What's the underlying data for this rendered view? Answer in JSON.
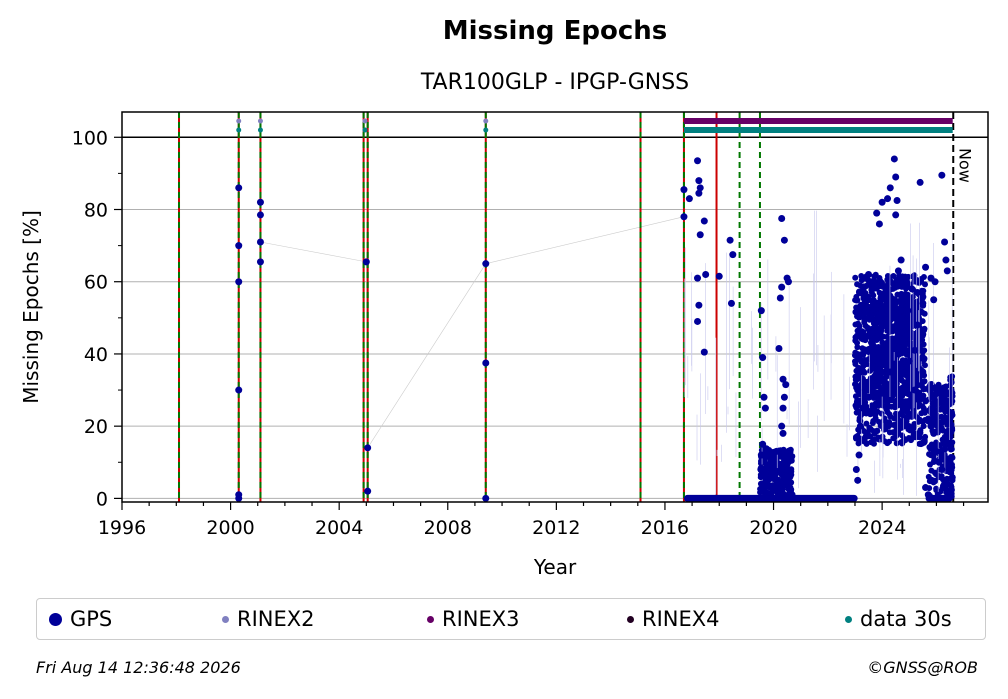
{
  "chart_data": {
    "type": "scatter",
    "title": "Missing Epochs",
    "subtitle": "TAR100GLP - IPGP-GNSS",
    "xlabel": "Year",
    "ylabel": "Missing Epochs [%]",
    "xlim": [
      1996,
      2027.9
    ],
    "ylim": [
      -1,
      107
    ],
    "xticks": [
      1996,
      2000,
      2004,
      2008,
      2012,
      2016,
      2020,
      2024
    ],
    "yticks": [
      0,
      20,
      40,
      60,
      80,
      100
    ],
    "grid": "horizontal",
    "now_label": "Now",
    "now_x": 2026.62,
    "reference_line_y": 100,
    "colors": {
      "gps": "#000099",
      "rinex2": "#8080c0",
      "rinex3": "#660066",
      "rinex4": "#220022",
      "data30s": "#008080",
      "red_line": "#cc0000",
      "green_line": "#007700",
      "grid": "#b0b0b0"
    },
    "event_lines_red": [
      1998.1,
      2000.3,
      2001.1,
      2004.9,
      2005.05,
      2009.4,
      2015.1,
      2016.7,
      2017.9
    ],
    "event_lines_green": [
      1998.1,
      2000.3,
      2001.1,
      2004.9,
      2005.05,
      2009.4,
      2015.1,
      2016.7,
      2018.75,
      2019.5
    ],
    "rinex2_points": [
      [
        2000.3,
        104.5
      ],
      [
        2001.1,
        104.5
      ],
      [
        2004.95,
        104.5
      ],
      [
        2009.4,
        104.5
      ]
    ],
    "data30s_points": [
      [
        2000.3,
        102
      ],
      [
        2001.1,
        102
      ],
      [
        2004.95,
        102
      ],
      [
        2009.4,
        102
      ]
    ],
    "rinex3_band": [
      2016.7,
      2026.6,
      104.5
    ],
    "data30s_band": [
      2016.7,
      2026.6,
      102
    ],
    "gps_points": [
      [
        2000.3,
        86
      ],
      [
        2000.3,
        70
      ],
      [
        2000.3,
        60
      ],
      [
        2000.3,
        30
      ],
      [
        2000.3,
        1
      ],
      [
        2000.3,
        0
      ],
      [
        2001.1,
        82
      ],
      [
        2001.1,
        78.5
      ],
      [
        2001.1,
        71
      ],
      [
        2001.1,
        65.5
      ],
      [
        2005.0,
        65.5
      ],
      [
        2005.05,
        14
      ],
      [
        2005.05,
        2
      ],
      [
        2009.4,
        65
      ],
      [
        2009.4,
        37.5
      ],
      [
        2009.4,
        0
      ],
      [
        2016.7,
        85.5
      ],
      [
        2016.7,
        78
      ],
      [
        2016.9,
        83
      ],
      [
        2017.2,
        93.5
      ],
      [
        2017.25,
        88
      ],
      [
        2017.3,
        86
      ],
      [
        2017.25,
        84.5
      ],
      [
        2017.3,
        73
      ],
      [
        2017.2,
        61
      ],
      [
        2017.25,
        53.5
      ],
      [
        2017.2,
        49
      ],
      [
        2017.5,
        62
      ],
      [
        2017.45,
        40.5
      ],
      [
        2017.45,
        76.8
      ],
      [
        2018.0,
        61.5
      ],
      [
        2018.4,
        71.5
      ],
      [
        2018.45,
        54
      ],
      [
        2018.5,
        67.5
      ],
      [
        2019.55,
        52
      ],
      [
        2019.6,
        39
      ],
      [
        2019.65,
        28
      ],
      [
        2019.7,
        25
      ],
      [
        2019.6,
        15
      ],
      [
        2019.55,
        12
      ],
      [
        2020.1,
        13
      ],
      [
        2020.2,
        41.5
      ],
      [
        2020.3,
        77.5
      ],
      [
        2020.3,
        58.5
      ],
      [
        2020.25,
        55.5
      ],
      [
        2020.4,
        71.5
      ],
      [
        2020.5,
        61
      ],
      [
        2020.55,
        60
      ],
      [
        2020.35,
        33
      ],
      [
        2020.45,
        31.5
      ],
      [
        2020.4,
        28
      ],
      [
        2020.35,
        25
      ],
      [
        2020.3,
        20
      ],
      [
        2020.35,
        18
      ],
      [
        2020.4,
        10
      ],
      [
        2020.5,
        6
      ],
      [
        2020.6,
        3
      ],
      [
        2023.1,
        30
      ],
      [
        2023.2,
        35
      ],
      [
        2023.3,
        45
      ],
      [
        2023.4,
        61
      ],
      [
        2023.5,
        62
      ],
      [
        2023.6,
        60
      ],
      [
        2023.8,
        79
      ],
      [
        2023.9,
        76
      ],
      [
        2024.0,
        82
      ],
      [
        2024.2,
        83
      ],
      [
        2024.3,
        86
      ],
      [
        2024.5,
        78.5
      ],
      [
        2024.45,
        94
      ],
      [
        2024.5,
        89
      ],
      [
        2024.55,
        82.5
      ],
      [
        2024.7,
        66
      ],
      [
        2024.6,
        63
      ],
      [
        2024.8,
        61
      ],
      [
        2024.9,
        60
      ],
      [
        2024.95,
        52
      ],
      [
        2025.1,
        58
      ],
      [
        2025.3,
        57
      ],
      [
        2025.5,
        54
      ],
      [
        2025.4,
        87.5
      ],
      [
        2025.6,
        64
      ],
      [
        2025.8,
        61
      ],
      [
        2025.9,
        55
      ],
      [
        2025.95,
        60
      ],
      [
        2026.2,
        89.5
      ],
      [
        2026.3,
        71
      ],
      [
        2026.35,
        66
      ],
      [
        2026.4,
        63
      ],
      [
        2025.2,
        30
      ],
      [
        2025.5,
        35
      ],
      [
        2025.6,
        27
      ],
      [
        2025.7,
        22
      ],
      [
        2025.8,
        20
      ],
      [
        2025.9,
        18
      ],
      [
        2026.0,
        13
      ],
      [
        2026.1,
        10
      ],
      [
        2026.2,
        8
      ],
      [
        2026.3,
        5
      ],
      [
        2026.4,
        4
      ],
      [
        2026.5,
        2
      ],
      [
        2025.6,
        3
      ],
      [
        2025.7,
        1
      ],
      [
        2023.2,
        20
      ],
      [
        2023.3,
        25
      ],
      [
        2023.5,
        28
      ],
      [
        2023.7,
        31
      ],
      [
        2024.0,
        33
      ],
      [
        2024.3,
        35
      ],
      [
        2024.6,
        40
      ],
      [
        2024.8,
        30
      ],
      [
        2025.0,
        38
      ],
      [
        2025.2,
        41
      ],
      [
        2025.3,
        48
      ],
      [
        2023.05,
        8
      ],
      [
        2023.1,
        5
      ],
      [
        2023.15,
        12
      ]
    ],
    "gps_zero_segments": [
      [
        2016.7,
        2023.1
      ],
      [
        2025.6,
        2026.6
      ]
    ],
    "gps_dense_clusters": [
      {
        "x": [
          2023.0,
          2025.6
        ],
        "y": [
          15,
          62
        ],
        "n": 900,
        "seed": 7
      },
      {
        "x": [
          2023.6,
          2025.4
        ],
        "y": [
          25,
          56
        ],
        "n": 500,
        "seed": 11
      },
      {
        "x": [
          2019.5,
          2020.7
        ],
        "y": [
          0,
          14
        ],
        "n": 220,
        "seed": 3
      },
      {
        "x": [
          2025.7,
          2026.6
        ],
        "y": [
          0,
          32
        ],
        "n": 220,
        "seed": 5
      },
      {
        "x": [
          2026.5,
          2026.6
        ],
        "y": [
          0,
          34
        ],
        "n": 40,
        "seed": 9
      }
    ],
    "legend": [
      {
        "label": "GPS",
        "color": "#000099",
        "size": 13
      },
      {
        "label": "RINEX2",
        "color": "#8080c0",
        "size": 7
      },
      {
        "label": "RINEX3",
        "color": "#660066",
        "size": 7
      },
      {
        "label": "RINEX4",
        "color": "#220022",
        "size": 7
      },
      {
        "label": "data 30s",
        "color": "#008080",
        "size": 7
      }
    ]
  },
  "footer": {
    "timestamp": "Fri Aug 14 12:36:48 2026",
    "copyright": "©GNSS@ROB"
  }
}
